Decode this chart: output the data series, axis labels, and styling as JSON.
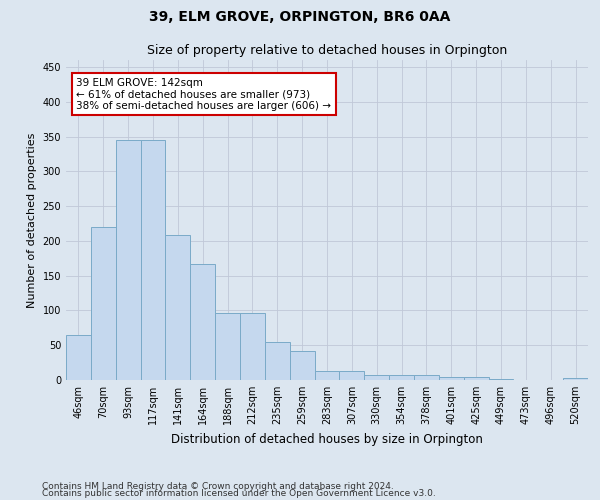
{
  "title": "39, ELM GROVE, ORPINGTON, BR6 0AA",
  "subtitle": "Size of property relative to detached houses in Orpington",
  "xlabel": "Distribution of detached houses by size in Orpington",
  "ylabel": "Number of detached properties",
  "categories": [
    "46sqm",
    "70sqm",
    "93sqm",
    "117sqm",
    "141sqm",
    "164sqm",
    "188sqm",
    "212sqm",
    "235sqm",
    "259sqm",
    "283sqm",
    "307sqm",
    "330sqm",
    "354sqm",
    "378sqm",
    "401sqm",
    "425sqm",
    "449sqm",
    "473sqm",
    "496sqm",
    "520sqm"
  ],
  "values": [
    65,
    220,
    345,
    345,
    208,
    167,
    97,
    97,
    55,
    42,
    13,
    13,
    7,
    7,
    7,
    5,
    5,
    1,
    0,
    0,
    3
  ],
  "bar_color": "#c5d8ee",
  "bar_edge_color": "#7aaac8",
  "highlight_bar_index": 4,
  "annotation_text": "39 ELM GROVE: 142sqm\n← 61% of detached houses are smaller (973)\n38% of semi-detached houses are larger (606) →",
  "annotation_box_color": "#ffffff",
  "annotation_box_edge_color": "#cc0000",
  "ylim": [
    0,
    460
  ],
  "yticks": [
    0,
    50,
    100,
    150,
    200,
    250,
    300,
    350,
    400,
    450
  ],
  "fig_bg_color": "#dce6f0",
  "plot_bg_color": "#dce6f0",
  "footer_line1": "Contains HM Land Registry data © Crown copyright and database right 2024.",
  "footer_line2": "Contains public sector information licensed under the Open Government Licence v3.0.",
  "title_fontsize": 10,
  "subtitle_fontsize": 9,
  "tick_fontsize": 7,
  "ylabel_fontsize": 8,
  "xlabel_fontsize": 8.5,
  "annotation_fontsize": 7.5,
  "footer_fontsize": 6.5
}
